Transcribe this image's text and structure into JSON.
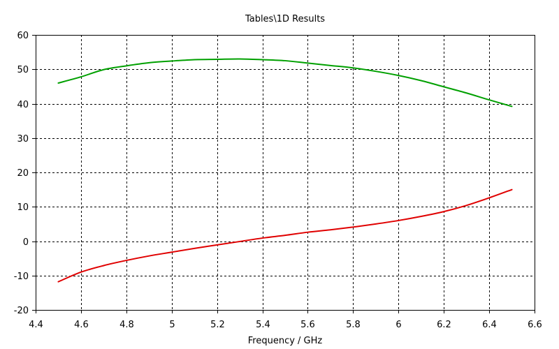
{
  "chart_data": {
    "type": "line",
    "title": "Tables\\1D Results",
    "xlabel": "Frequency / GHz",
    "ylabel": "",
    "xlim": [
      4.4,
      6.6
    ],
    "ylim": [
      -20,
      60
    ],
    "xticks": [
      4.4,
      4.6,
      4.8,
      5,
      5.2,
      5.4,
      5.6,
      5.8,
      6,
      6.2,
      6.4,
      6.6
    ],
    "yticks": [
      -20,
      -10,
      0,
      10,
      20,
      30,
      40,
      50,
      60
    ],
    "grid": true,
    "legend": "none",
    "series": [
      {
        "color": "#00a000",
        "x": [
          4.5,
          4.6,
          4.7,
          4.8,
          4.9,
          5.0,
          5.1,
          5.2,
          5.3,
          5.4,
          5.5,
          5.6,
          5.7,
          5.8,
          5.9,
          6.0,
          6.1,
          6.2,
          6.3,
          6.4,
          6.5
        ],
        "y": [
          46.0,
          47.8,
          49.9,
          51.0,
          51.9,
          52.4,
          52.8,
          52.9,
          53.0,
          52.8,
          52.5,
          51.8,
          51.1,
          50.4,
          49.4,
          48.2,
          46.7,
          44.9,
          43.1,
          41.1,
          39.2
        ]
      },
      {
        "color": "#e00000",
        "x": [
          4.5,
          4.6,
          4.7,
          4.8,
          4.9,
          5.0,
          5.1,
          5.2,
          5.3,
          5.4,
          5.5,
          5.6,
          5.7,
          5.8,
          5.9,
          6.0,
          6.1,
          6.2,
          6.3,
          6.4,
          6.5
        ],
        "y": [
          -11.8,
          -9.0,
          -7.1,
          -5.6,
          -4.3,
          -3.2,
          -2.1,
          -1.1,
          -0.1,
          0.9,
          1.7,
          2.6,
          3.3,
          4.1,
          5.0,
          6.0,
          7.2,
          8.6,
          10.4,
          12.6,
          15.0
        ]
      }
    ]
  }
}
